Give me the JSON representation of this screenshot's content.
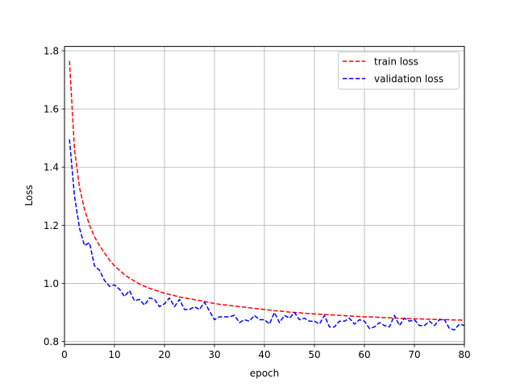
{
  "chart_data": {
    "type": "line",
    "title": "",
    "xlabel": "epoch",
    "ylabel": "Loss",
    "xlim": [
      0,
      80
    ],
    "ylim": [
      0.79,
      1.815
    ],
    "xticks": [
      0,
      10,
      20,
      30,
      40,
      50,
      60,
      70,
      80
    ],
    "yticks": [
      0.8,
      1.0,
      1.2,
      1.4,
      1.6,
      1.8
    ],
    "ytick_labels": [
      "0.8",
      "1.0",
      "1.2",
      "1.4",
      "1.6",
      "1.8"
    ],
    "grid": true,
    "legend_position": "top-right",
    "x": [
      1,
      2,
      3,
      4,
      5,
      6,
      7,
      8,
      9,
      10,
      11,
      12,
      13,
      14,
      15,
      16,
      17,
      18,
      19,
      20,
      21,
      22,
      23,
      24,
      25,
      26,
      27,
      28,
      29,
      30,
      31,
      32,
      33,
      34,
      35,
      36,
      37,
      38,
      39,
      40,
      41,
      42,
      43,
      44,
      45,
      46,
      47,
      48,
      49,
      50,
      51,
      52,
      53,
      54,
      55,
      56,
      57,
      58,
      59,
      60,
      61,
      62,
      63,
      64,
      65,
      66,
      67,
      68,
      69,
      70,
      71,
      72,
      73,
      74,
      75,
      76,
      77,
      78,
      79,
      80
    ],
    "series": [
      {
        "name": "train loss",
        "color": "#ff0000",
        "dash": "dashed",
        "values": [
          1.765,
          1.46,
          1.33,
          1.255,
          1.2,
          1.16,
          1.13,
          1.105,
          1.08,
          1.06,
          1.045,
          1.03,
          1.018,
          1.008,
          0.998,
          0.99,
          0.983,
          0.977,
          0.972,
          0.966,
          0.962,
          0.958,
          0.953,
          0.95,
          0.947,
          0.944,
          0.941,
          0.938,
          0.934,
          0.931,
          0.928,
          0.926,
          0.924,
          0.922,
          0.92,
          0.918,
          0.916,
          0.914,
          0.912,
          0.91,
          0.908,
          0.906,
          0.905,
          0.903,
          0.901,
          0.9,
          0.899,
          0.897,
          0.896,
          0.895,
          0.894,
          0.893,
          0.892,
          0.891,
          0.89,
          0.889,
          0.888,
          0.887,
          0.886,
          0.885,
          0.885,
          0.884,
          0.883,
          0.882,
          0.882,
          0.881,
          0.88,
          0.879,
          0.879,
          0.878,
          0.878,
          0.877,
          0.877,
          0.876,
          0.876,
          0.875,
          0.875,
          0.874,
          0.874,
          0.873
        ]
      },
      {
        "name": "validation loss",
        "color": "#0000ff",
        "dash": "dashed",
        "values": [
          1.495,
          1.3,
          1.19,
          1.13,
          1.14,
          1.06,
          1.045,
          1.01,
          0.99,
          0.995,
          0.98,
          0.955,
          0.975,
          0.94,
          0.945,
          0.925,
          0.95,
          0.945,
          0.92,
          0.93,
          0.95,
          0.92,
          0.945,
          0.91,
          0.91,
          0.92,
          0.91,
          0.935,
          0.905,
          0.875,
          0.885,
          0.885,
          0.885,
          0.89,
          0.865,
          0.875,
          0.87,
          0.89,
          0.875,
          0.875,
          0.86,
          0.9,
          0.865,
          0.89,
          0.88,
          0.9,
          0.875,
          0.88,
          0.87,
          0.87,
          0.86,
          0.89,
          0.85,
          0.85,
          0.87,
          0.87,
          0.88,
          0.86,
          0.875,
          0.87,
          0.845,
          0.85,
          0.865,
          0.855,
          0.85,
          0.89,
          0.855,
          0.88,
          0.87,
          0.875,
          0.855,
          0.855,
          0.87,
          0.855,
          0.875,
          0.875,
          0.845,
          0.84,
          0.86,
          0.855
        ]
      }
    ]
  }
}
